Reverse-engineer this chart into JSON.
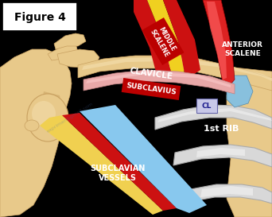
{
  "bg_color": "#000000",
  "figure_label": "Figure 4",
  "labels": {
    "middle_scalene": "MIDDLE\nSCALENE",
    "anterior_scalene": "ANTERIOR\nSCALENE",
    "clavicle": "CLAVICLE",
    "subclavius": "SUBCLAVIUS",
    "subclavian_vessels": "SUBCLAVIAN\nVESSELS",
    "first_rib": "1st RIB",
    "cl": "CL"
  },
  "bone_color": "#e8c98a",
  "bone_dark": "#c8a060",
  "bone_light": "#f5e0b0",
  "rib_color": "#d8d8d8",
  "rib_dark": "#aaaaaa",
  "rib_light": "#eeeeee",
  "middle_scalene_red": "#cc1111",
  "middle_scalene_yellow": "#f0d020",
  "anterior_scalene_red": "#dd2222",
  "anterior_scalene_light": "#ff6666",
  "pink_muscle": "#f0b8b8",
  "blue_vessel": "#88c8ee",
  "artery_red": "#cc1111",
  "nerve_yellow": "#f0d050",
  "subclavius_pink": "#e8a8a8"
}
